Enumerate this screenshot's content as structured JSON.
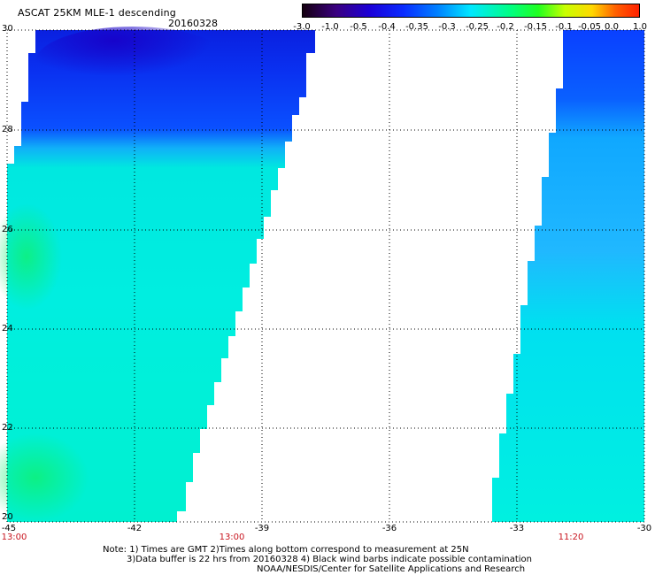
{
  "header": {
    "title": "ASCAT 25KM MLE-1 descending",
    "date": "20160328"
  },
  "colorbar": {
    "labels": [
      "-3.0",
      "-1.0",
      "-0.5",
      "-0.4",
      "-0.35",
      "-0.3",
      "-0.25",
      "-0.2",
      "-0.15",
      "-0.1",
      "-0.05",
      "0.0",
      "1.0"
    ]
  },
  "map": {
    "lat_labels": [
      "30",
      "28",
      "26",
      "24",
      "22",
      "20"
    ],
    "lon_labels": [
      "-45",
      "-42",
      "-39",
      "-36",
      "-33",
      "-30"
    ],
    "time_labels": [
      "13:00",
      "13:00",
      "11:20"
    ],
    "colors": {
      "deep_blue": "#0a10e8",
      "blue": "#0a40ff",
      "light_blue": "#1a80ff",
      "cyan": "#00e8f0",
      "aqua": "#00f0d0",
      "green": "#10f070"
    }
  },
  "footer": {
    "note_line1": "Note: 1) Times are GMT 2)Times along bottom correspond to measurement at 25N",
    "note_line2": "3)Data buffer is 22 hrs from 20160328 4) Black wind barbs indicate possible contamination",
    "note_line3": "NOAA/NESDIS/Center for Satellite Applications and Research"
  }
}
